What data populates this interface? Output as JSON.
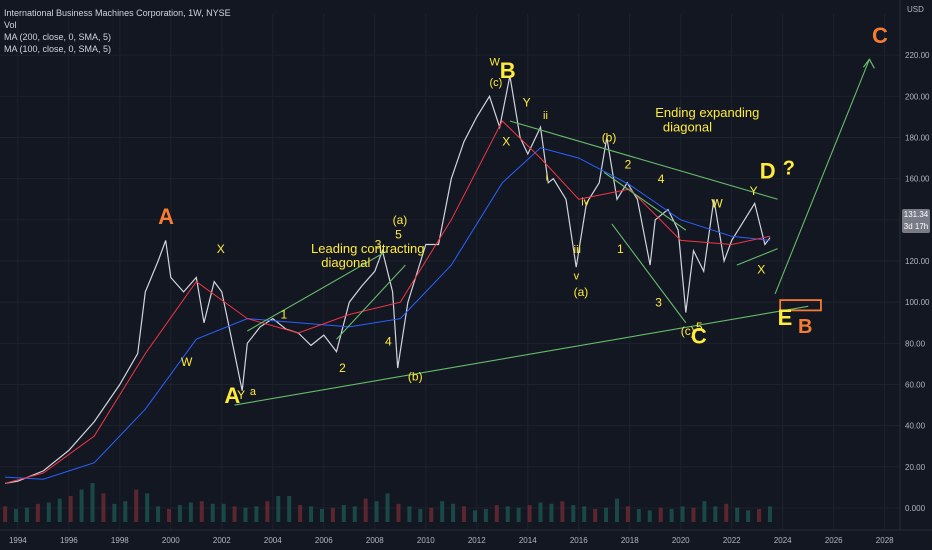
{
  "header": {
    "title": "International Business Machines Corporation, 1W, NYSE",
    "volume_label": "Vol",
    "ma1": "MA (200, close, 0, SMA, 5)",
    "ma2": "MA (100, close, 0, SMA, 5)"
  },
  "price_tag": {
    "price": "131.34",
    "countdown": "3d 17h"
  },
  "chart_data": {
    "type": "line",
    "title": "International Business Machines Corporation, 1W, NYSE",
    "unit_label": "USD",
    "xlim": [
      1993.3,
      2028.6
    ],
    "ylim": [
      0,
      240
    ],
    "x_ticks": [
      "1994",
      "1996",
      "1998",
      "2000",
      "2002",
      "2004",
      "2006",
      "2008",
      "2010",
      "2012",
      "2014",
      "2016",
      "2018",
      "2020",
      "2022",
      "2024",
      "2026",
      "2028"
    ],
    "y_ticks": [
      "0.000",
      "20.00",
      "40.00",
      "60.00",
      "80.00",
      "100.00",
      "120.00",
      "140.00",
      "160.00",
      "180.00",
      "200.00",
      "220.00"
    ],
    "series": [
      {
        "name": "Price",
        "color": "#d1d4dc",
        "points": [
          [
            1993.5,
            12
          ],
          [
            1994,
            13
          ],
          [
            1995,
            18
          ],
          [
            1996,
            28
          ],
          [
            1997,
            42
          ],
          [
            1998,
            60
          ],
          [
            1998.7,
            75
          ],
          [
            1999,
            105
          ],
          [
            1999.5,
            120
          ],
          [
            1999.8,
            130
          ],
          [
            2000,
            112
          ],
          [
            2000.5,
            105
          ],
          [
            2001,
            112
          ],
          [
            2001.3,
            90
          ],
          [
            2001.7,
            110
          ],
          [
            2002,
            105
          ],
          [
            2002.5,
            75
          ],
          [
            2002.8,
            57
          ],
          [
            2003,
            80
          ],
          [
            2003.5,
            88
          ],
          [
            2004,
            92
          ],
          [
            2004.5,
            87
          ],
          [
            2005,
            85
          ],
          [
            2005.5,
            79
          ],
          [
            2006,
            84
          ],
          [
            2006.5,
            76
          ],
          [
            2007,
            100
          ],
          [
            2007.5,
            108
          ],
          [
            2008,
            115
          ],
          [
            2008.3,
            125
          ],
          [
            2008.7,
            105
          ],
          [
            2008.9,
            68
          ],
          [
            2009.3,
            100
          ],
          [
            2009.8,
            120
          ],
          [
            2010,
            128
          ],
          [
            2010.5,
            128
          ],
          [
            2011,
            160
          ],
          [
            2011.5,
            178
          ],
          [
            2012,
            190
          ],
          [
            2012.5,
            200
          ],
          [
            2012.9,
            185
          ],
          [
            2013.3,
            210
          ],
          [
            2013.7,
            180
          ],
          [
            2014,
            172
          ],
          [
            2014.5,
            185
          ],
          [
            2014.8,
            158
          ],
          [
            2015,
            160
          ],
          [
            2015.5,
            150
          ],
          [
            2015.9,
            117
          ],
          [
            2016.3,
            148
          ],
          [
            2016.8,
            158
          ],
          [
            2017.1,
            180
          ],
          [
            2017.5,
            150
          ],
          [
            2017.9,
            158
          ],
          [
            2018.3,
            150
          ],
          [
            2018.8,
            118
          ],
          [
            2019,
            140
          ],
          [
            2019.5,
            145
          ],
          [
            2019.9,
            135
          ],
          [
            2020.2,
            95
          ],
          [
            2020.5,
            125
          ],
          [
            2020.9,
            115
          ],
          [
            2021.3,
            150
          ],
          [
            2021.7,
            120
          ],
          [
            2022,
            130
          ],
          [
            2022.5,
            140
          ],
          [
            2022.9,
            148
          ],
          [
            2023.3,
            128
          ],
          [
            2023.5,
            131.34
          ]
        ]
      },
      {
        "name": "MA (200, close, 0, SMA, 5)",
        "color": "#2962ff",
        "points": [
          [
            1993.5,
            15
          ],
          [
            1995,
            14
          ],
          [
            1997,
            22
          ],
          [
            1999,
            48
          ],
          [
            2001,
            82
          ],
          [
            2003,
            92
          ],
          [
            2005,
            90
          ],
          [
            2007,
            88
          ],
          [
            2009,
            92
          ],
          [
            2011,
            118
          ],
          [
            2013,
            158
          ],
          [
            2014.5,
            175
          ],
          [
            2016,
            170
          ],
          [
            2018,
            157
          ],
          [
            2020,
            140
          ],
          [
            2022,
            132
          ],
          [
            2023.5,
            130
          ]
        ]
      },
      {
        "name": "MA (100, close, 0, SMA, 5)",
        "color": "#f23645",
        "points": [
          [
            1993.5,
            12
          ],
          [
            1995,
            17
          ],
          [
            1997,
            35
          ],
          [
            1999,
            75
          ],
          [
            2001,
            110
          ],
          [
            2003,
            92
          ],
          [
            2005,
            85
          ],
          [
            2007,
            94
          ],
          [
            2009,
            100
          ],
          [
            2011,
            140
          ],
          [
            2013,
            188
          ],
          [
            2014.5,
            170
          ],
          [
            2016,
            150
          ],
          [
            2018,
            155
          ],
          [
            2020,
            130
          ],
          [
            2022,
            128
          ],
          [
            2023.5,
            132
          ]
        ]
      }
    ],
    "volume": [
      12,
      10,
      11,
      14,
      15,
      18,
      20,
      25,
      30,
      22,
      14,
      16,
      25,
      22,
      12,
      10,
      13,
      15,
      16,
      14,
      14,
      12,
      11,
      12,
      16,
      20,
      20,
      13,
      12,
      10,
      11,
      13,
      12,
      18,
      16,
      22,
      14,
      12,
      10,
      11,
      16,
      14,
      12,
      9,
      10,
      13,
      12,
      11,
      13,
      15,
      14,
      16,
      13,
      12,
      10,
      11,
      18,
      12,
      10,
      9,
      11,
      10,
      12,
      11,
      16,
      12,
      14,
      11,
      9,
      10,
      12
    ],
    "trendlines": [
      {
        "from": [
          2002.5,
          50
        ],
        "to": [
          2025,
          98
        ]
      },
      {
        "from": [
          2003,
          86
        ],
        "to": [
          2008.5,
          125
        ]
      },
      {
        "from": [
          2006.5,
          82
        ],
        "to": [
          2009.2,
          118
        ]
      },
      {
        "from": [
          2013.3,
          188
        ],
        "to": [
          2023.8,
          150
        ]
      },
      {
        "from": [
          2017,
          163
        ],
        "to": [
          2020.2,
          135
        ]
      },
      {
        "from": [
          2017.3,
          138
        ],
        "to": [
          2020.2,
          90
        ]
      },
      {
        "from": [
          2022.2,
          118
        ],
        "to": [
          2023.8,
          126
        ]
      },
      {
        "from": [
          2023.7,
          104
        ],
        "to": [
          2027.4,
          218
        ]
      }
    ],
    "target_box": {
      "x": [
        2023.9,
        2025.5
      ],
      "y": [
        96,
        101
      ],
      "color": "#f57c31"
    },
    "annotations": [
      {
        "text": "A",
        "x": 1999.5,
        "y": 138,
        "color": "#f57c31",
        "size": 22
      },
      {
        "text": "B",
        "x": 2012.9,
        "y": 209,
        "color": "#ffeb3b",
        "size": 22
      },
      {
        "text": "C",
        "x": 2020.4,
        "y": 80,
        "color": "#ffeb3b",
        "size": 22
      },
      {
        "text": "D",
        "x": 2023.1,
        "y": 160,
        "color": "#ffeb3b",
        "size": 22
      },
      {
        "text": "?",
        "x": 2024,
        "y": 162,
        "color": "#ffeb3b",
        "size": 20
      },
      {
        "text": "E",
        "x": 2023.8,
        "y": 89,
        "color": "#ffeb3b",
        "size": 22
      },
      {
        "text": "B",
        "x": 2024.6,
        "y": 85,
        "color": "#f57c31",
        "size": 20
      },
      {
        "text": "C",
        "x": 2027.5,
        "y": 226,
        "color": "#f57c31",
        "size": 22
      },
      {
        "text": "A",
        "x": 2002.1,
        "y": 51,
        "color": "#ffeb3b",
        "size": 22
      },
      {
        "text": "Y",
        "x": 2002.6,
        "y": 53,
        "color": "#ffeb3b",
        "size": 12
      },
      {
        "text": "a",
        "x": 2003.1,
        "y": 55,
        "color": "#ffeb3b",
        "size": 11
      },
      {
        "text": "W",
        "x": 2000.4,
        "y": 69,
        "color": "#ffeb3b",
        "size": 12
      },
      {
        "text": "X",
        "x": 2001.8,
        "y": 124,
        "color": "#ffeb3b",
        "size": 12
      },
      {
        "text": "1",
        "x": 2004.3,
        "y": 92,
        "color": "#ffeb3b",
        "size": 12
      },
      {
        "text": "2",
        "x": 2006.6,
        "y": 66,
        "color": "#ffeb3b",
        "size": 12
      },
      {
        "text": "3",
        "x": 2008.0,
        "y": 126,
        "color": "#ffeb3b",
        "size": 12
      },
      {
        "text": "4",
        "x": 2008.4,
        "y": 79,
        "color": "#ffeb3b",
        "size": 12
      },
      {
        "text": "5",
        "x": 2008.8,
        "y": 131,
        "color": "#ffeb3b",
        "size": 12
      },
      {
        "text": "(a)",
        "x": 2008.7,
        "y": 138,
        "color": "#ffeb3b",
        "size": 12
      },
      {
        "text": "(b)",
        "x": 2009.3,
        "y": 62,
        "color": "#ffeb3b",
        "size": 12
      },
      {
        "text": "W",
        "x": 2012.5,
        "y": 215,
        "color": "#ffeb3b",
        "size": 11
      },
      {
        "text": "(c)",
        "x": 2012.5,
        "y": 205,
        "color": "#ffeb3b",
        "size": 11
      },
      {
        "text": "X",
        "x": 2013.0,
        "y": 176,
        "color": "#ffeb3b",
        "size": 12
      },
      {
        "text": "Y",
        "x": 2013.8,
        "y": 195,
        "color": "#ffeb3b",
        "size": 12
      },
      {
        "text": "ii",
        "x": 2014.6,
        "y": 189,
        "color": "#ffeb3b",
        "size": 11
      },
      {
        "text": "i",
        "x": 2014.7,
        "y": 159,
        "color": "#ffeb3b",
        "size": 11
      },
      {
        "text": "iii",
        "x": 2015.8,
        "y": 124,
        "color": "#ffeb3b",
        "size": 11
      },
      {
        "text": "iv",
        "x": 2016.1,
        "y": 147,
        "color": "#ffeb3b",
        "size": 11
      },
      {
        "text": "v",
        "x": 2015.8,
        "y": 111,
        "color": "#ffeb3b",
        "size": 11
      },
      {
        "text": "(a)",
        "x": 2015.8,
        "y": 103,
        "color": "#ffeb3b",
        "size": 12
      },
      {
        "text": "(b)",
        "x": 2016.9,
        "y": 178,
        "color": "#ffeb3b",
        "size": 12
      },
      {
        "text": "1",
        "x": 2017.5,
        "y": 124,
        "color": "#ffeb3b",
        "size": 12
      },
      {
        "text": "2",
        "x": 2017.8,
        "y": 165,
        "color": "#ffeb3b",
        "size": 12
      },
      {
        "text": "3",
        "x": 2019.0,
        "y": 98,
        "color": "#ffeb3b",
        "size": 12
      },
      {
        "text": "4",
        "x": 2019.1,
        "y": 158,
        "color": "#ffeb3b",
        "size": 12
      },
      {
        "text": "(c)",
        "x": 2020.0,
        "y": 84,
        "color": "#ffeb3b",
        "size": 12
      },
      {
        "text": "5",
        "x": 2020.6,
        "y": 86,
        "color": "#ffeb3b",
        "size": 12
      },
      {
        "text": "W",
        "x": 2021.2,
        "y": 146,
        "color": "#ffeb3b",
        "size": 12
      },
      {
        "text": "Y",
        "x": 2022.7,
        "y": 152,
        "color": "#ffeb3b",
        "size": 12
      },
      {
        "text": "X",
        "x": 2023.0,
        "y": 114,
        "color": "#ffeb3b",
        "size": 12
      },
      {
        "text": "Leading contracting",
        "x": 2005.5,
        "y": 124,
        "color": "#ffeb3b",
        "size": 13
      },
      {
        "text": "diagonal",
        "x": 2005.9,
        "y": 117,
        "color": "#ffeb3b",
        "size": 13
      },
      {
        "text": "Ending expanding",
        "x": 2019.0,
        "y": 190,
        "color": "#ffeb3b",
        "size": 13
      },
      {
        "text": "diagonal",
        "x": 2019.3,
        "y": 183,
        "color": "#ffeb3b",
        "size": 13
      }
    ]
  }
}
